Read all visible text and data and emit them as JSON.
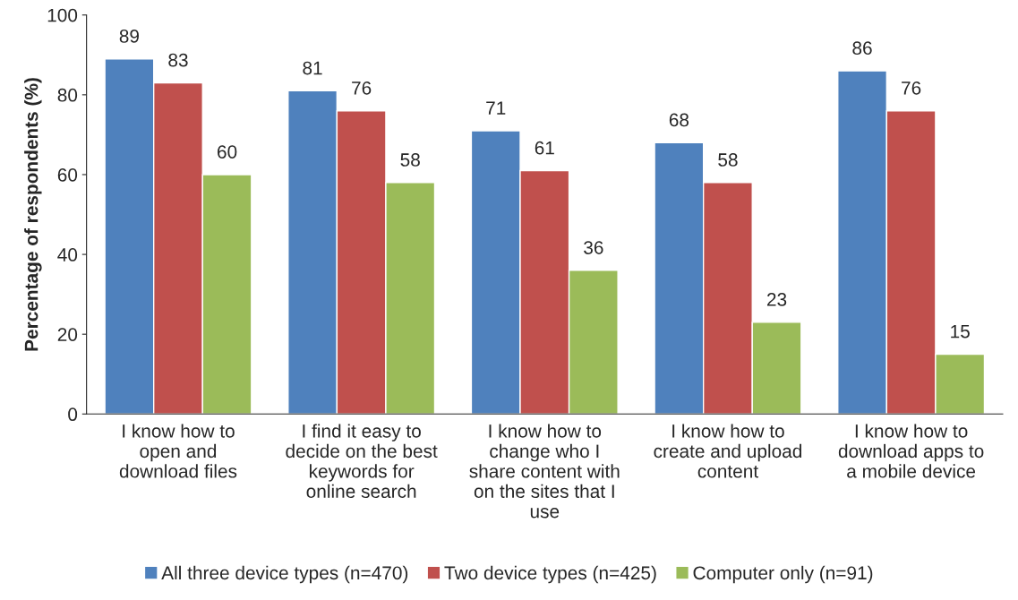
{
  "chart_data": {
    "type": "bar",
    "ylabel": "Percentage of respondents (%)",
    "categories": [
      "I know how to\nopen and\ndownload files",
      "I find it easy to\ndecide on the best\nkeywords for\nonline search",
      "I know how to\nchange who I\nshare content with\non the sites that I\nuse",
      "I know how to\ncreate and upload\ncontent",
      "I know how to\ndownload apps to\na mobile device"
    ],
    "series": [
      {
        "name": "All three device types (n=470)",
        "color": "#4f81bd",
        "values": [
          89,
          81,
          71,
          68,
          86
        ]
      },
      {
        "name": "Two device types (n=425)",
        "color": "#c0504d",
        "values": [
          83,
          76,
          61,
          58,
          76
        ]
      },
      {
        "name": "Computer only (n=91)",
        "color": "#9bbb59",
        "values": [
          60,
          58,
          36,
          23,
          15
        ]
      }
    ],
    "ylim": [
      0,
      100
    ],
    "yticks": [
      0,
      20,
      40,
      60,
      80,
      100
    ],
    "data_labels": true,
    "grid": false,
    "legend": "bottom"
  }
}
